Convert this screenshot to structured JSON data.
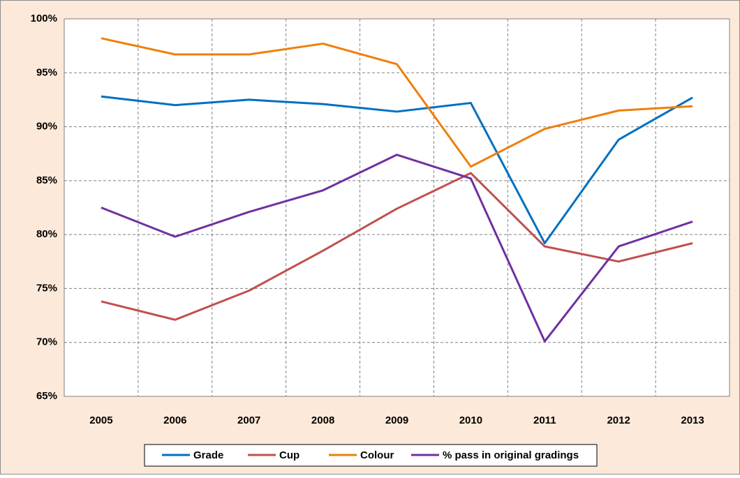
{
  "chart_data": {
    "type": "line",
    "categories": [
      "2005",
      "2006",
      "2007",
      "2008",
      "2009",
      "2010",
      "2011",
      "2012",
      "2013"
    ],
    "series": [
      {
        "name": "Grade",
        "color": "#0070c0",
        "values": [
          92.8,
          92.0,
          92.5,
          92.1,
          91.4,
          92.2,
          79.2,
          88.8,
          92.7
        ]
      },
      {
        "name": "Cup",
        "color": "#c0504d",
        "values": [
          73.8,
          72.1,
          74.8,
          78.5,
          82.4,
          85.7,
          78.9,
          77.5,
          79.2
        ]
      },
      {
        "name": "Colour",
        "color": "#f07f09",
        "values": [
          98.2,
          96.7,
          96.7,
          97.7,
          95.8,
          86.3,
          89.8,
          91.5,
          91.9
        ]
      },
      {
        "name": "% pass in original gradings",
        "color": "#7030a0",
        "values": [
          82.5,
          79.8,
          82.1,
          84.1,
          87.4,
          85.2,
          70.1,
          78.9,
          81.2
        ]
      }
    ],
    "ylim": [
      65,
      100
    ],
    "yticks": [
      {
        "value": 65,
        "label": "65%"
      },
      {
        "value": 70,
        "label": "70%"
      },
      {
        "value": 75,
        "label": "75%"
      },
      {
        "value": 80,
        "label": "80%"
      },
      {
        "value": 85,
        "label": "85%"
      },
      {
        "value": 90,
        "label": "90%"
      },
      {
        "value": 95,
        "label": "95%"
      },
      {
        "value": 100,
        "label": "100%"
      }
    ],
    "grid": true,
    "legend": "bottom"
  }
}
